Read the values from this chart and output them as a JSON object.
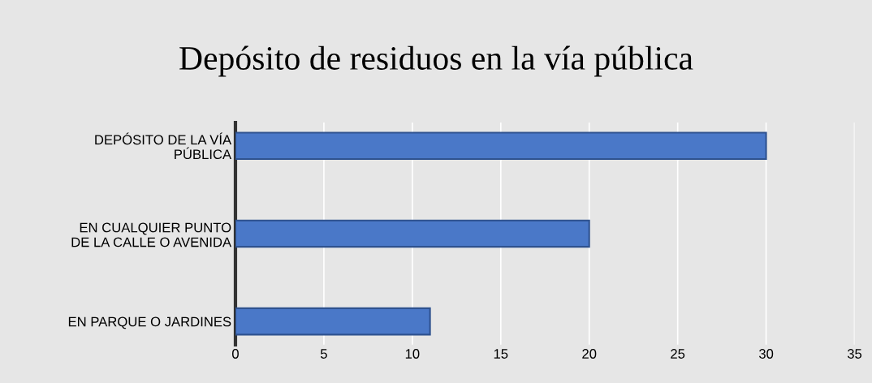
{
  "chart_data": {
    "type": "bar",
    "orientation": "horizontal",
    "title": "Depósito de residuos en la vía pública",
    "categories": [
      "DEPÓSITO DE LA VÍA\nPÚBLICA",
      "EN CUALQUIER PUNTO\nDE LA CALLE O AVENIDA",
      "EN PARQUE O JARDINES"
    ],
    "values": [
      30,
      20,
      11
    ],
    "color": "#4a78c8",
    "xlim": [
      0,
      35
    ],
    "xticks": [
      0,
      5,
      10,
      15,
      20,
      25,
      30,
      35
    ],
    "grid": "x"
  }
}
